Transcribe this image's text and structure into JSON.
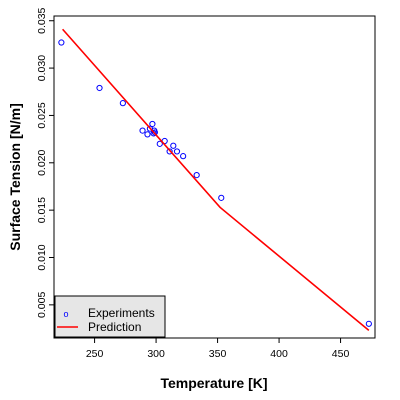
{
  "chart_data": {
    "type": "scatter",
    "title": "",
    "xlabel": "Temperature [K]",
    "ylabel": "Surface Tension [N/m]",
    "xlim": [
      217,
      478
    ],
    "ylim": [
      0.0015,
      0.0355
    ],
    "xticks": [
      250,
      300,
      350,
      400,
      450
    ],
    "yticks": [
      0.005,
      0.01,
      0.015,
      0.02,
      0.025,
      0.03,
      0.035
    ],
    "ytick_labels": [
      "0.005",
      "0.010",
      "0.015",
      "0.020",
      "0.025",
      "0.030",
      "0.035"
    ],
    "grid": false,
    "legend_position": "bottom-left",
    "series": [
      {
        "name": "Experiments",
        "kind": "points",
        "color": "#0000ff",
        "marker": "open-circle",
        "x": [
          223,
          254,
          273,
          289,
          293,
          295,
          297,
          298,
          298.5,
          299,
          303,
          307,
          311,
          314,
          317,
          322,
          333,
          353,
          473
        ],
        "y": [
          0.0327,
          0.0279,
          0.0263,
          0.0234,
          0.023,
          0.0236,
          0.0241,
          0.0231,
          0.0234,
          0.0232,
          0.022,
          0.0223,
          0.0212,
          0.0218,
          0.0212,
          0.0207,
          0.0187,
          0.0163,
          0.003
        ]
      },
      {
        "name": "Prediction",
        "kind": "line",
        "color": "#ff0000",
        "x": [
          224,
          352,
          473
        ],
        "y": [
          0.0341,
          0.0153,
          0.0023
        ]
      }
    ]
  }
}
